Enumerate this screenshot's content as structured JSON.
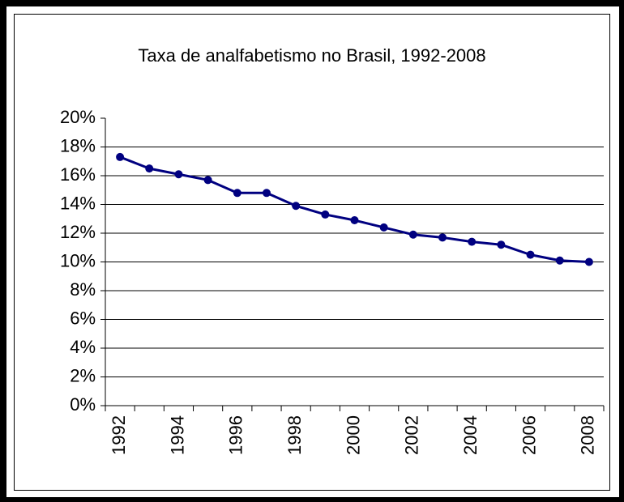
{
  "chart_data": {
    "type": "line",
    "title": "Taxa de analfabetismo no Brasil, 1992-2008",
    "categories": [
      "1992",
      null,
      "1994",
      null,
      "1996",
      null,
      "1998",
      null,
      "2000",
      null,
      "2002",
      null,
      "2004",
      null,
      "2006",
      null,
      "2008"
    ],
    "series": [
      {
        "name": "Taxa de analfabetismo",
        "color": "#000080",
        "values": [
          17.3,
          16.5,
          16.1,
          15.7,
          14.8,
          14.8,
          13.9,
          13.3,
          12.9,
          12.4,
          11.9,
          11.7,
          11.4,
          11.2,
          10.5,
          10.1,
          10.0
        ]
      }
    ],
    "ylim": [
      0,
      20
    ],
    "yticks": [
      {
        "value": 0,
        "label": "0%"
      },
      {
        "value": 2,
        "label": "2%"
      },
      {
        "value": 4,
        "label": "4%"
      },
      {
        "value": 6,
        "label": "6%"
      },
      {
        "value": 8,
        "label": "8%"
      },
      {
        "value": 10,
        "label": "10%"
      },
      {
        "value": 12,
        "label": "12%"
      },
      {
        "value": 14,
        "label": "14%"
      },
      {
        "value": 16,
        "label": "16%"
      },
      {
        "value": 18,
        "label": "18%"
      },
      {
        "value": 20,
        "label": "20%"
      }
    ],
    "grid": true
  }
}
